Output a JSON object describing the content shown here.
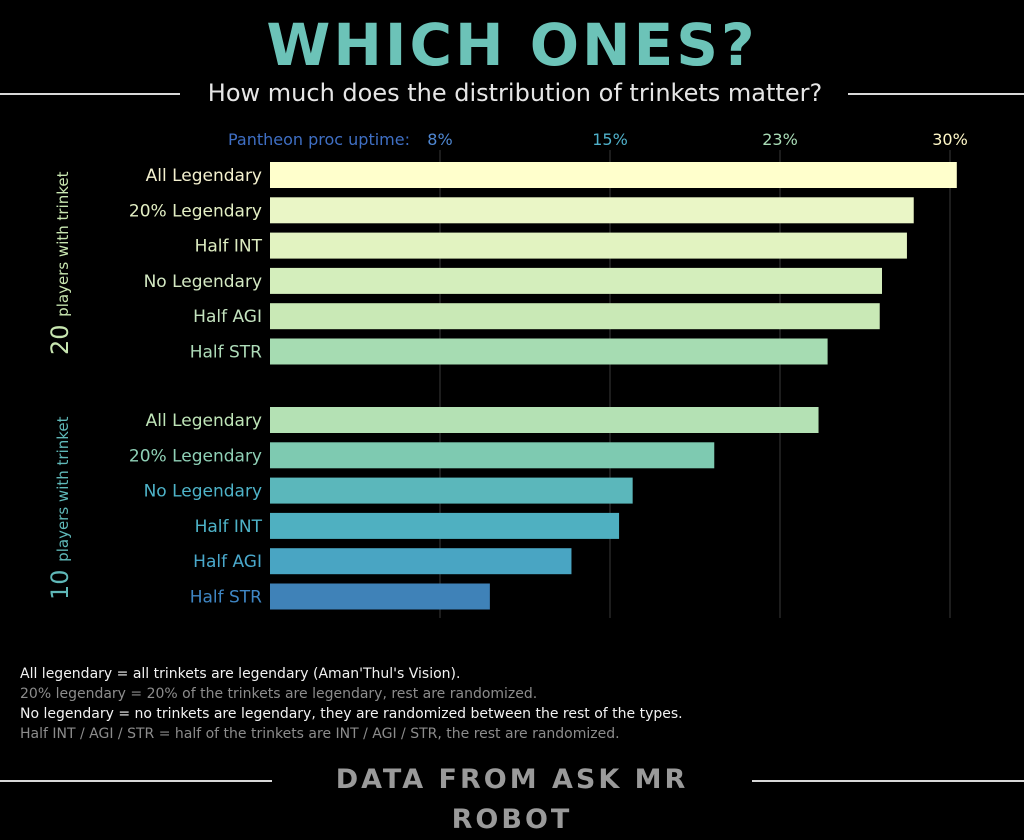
{
  "title": "WHICH ONES?",
  "subtitle": "How much does the distribution of trinkets matter?",
  "chart_data": {
    "type": "bar",
    "orientation": "horizontal",
    "axis_label": "Pantheon proc uptime:",
    "ticks": [
      "8%",
      "15%",
      "23%",
      "30%"
    ],
    "xlim": [
      0,
      30
    ],
    "grid": true,
    "groups": [
      {
        "name_number": "20",
        "name_text": "players with trinket",
        "categories": [
          "All Legendary",
          "20% Legendary",
          "Half INT",
          "No Legendary",
          "Half AGI",
          "Half STR"
        ],
        "values": [
          30.3,
          28.4,
          28.1,
          27.0,
          26.9,
          24.6
        ]
      },
      {
        "name_number": "10",
        "name_text": "players with trinket",
        "categories": [
          "All Legendary",
          "20% Legendary",
          "No Legendary",
          "Half INT",
          "Half AGI",
          "Half STR"
        ],
        "values": [
          24.2,
          19.6,
          16.0,
          15.4,
          13.3,
          9.7
        ]
      }
    ],
    "colors": [
      "#ffffcc",
      "#eaf6c6",
      "#e2f3c1",
      "#d4eebc",
      "#c9e9b6",
      "#a6dcb2",
      "#b4e1b4",
      "#7ecab1",
      "#5bb7bb",
      "#4fb0c1",
      "#49a5c3",
      "#3f82b8"
    ],
    "label_colors": [
      "#f4f1cf",
      "#e3efc4",
      "#ddecc1",
      "#d4e9c3",
      "#c4e3bf",
      "#aedcb9",
      "#bfe5b8",
      "#8fd0b6",
      "#4eb3c8",
      "#4eb3c8",
      "#4aa9cc",
      "#3f86c4"
    ]
  },
  "footnotes": [
    "All legendary = all trinkets are legendary (Aman'Thul's Vision).",
    "20% legendary = 20% of the trinkets are legendary, rest are randomized.",
    "No legendary = no trinkets are legendary, they are randomized between the rest of the types.",
    "Half INT / AGI / STR = half of the trinkets are INT / AGI / STR, the rest are randomized."
  ],
  "source": "DATA FROM ASK MR ROBOT"
}
